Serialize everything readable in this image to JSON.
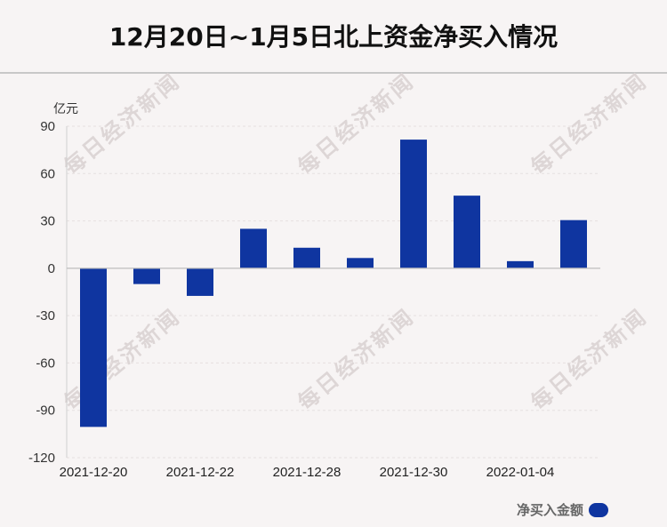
{
  "chart_data": {
    "type": "bar",
    "title": "12月20日~1月5日北上资金净买入情况",
    "ylabel": "亿元",
    "xlabel": "",
    "categories": [
      "2021-12-20",
      "",
      "2021-12-22",
      "",
      "2021-12-28",
      "",
      "2021-12-30",
      "",
      "2022-01-04",
      ""
    ],
    "series": [
      {
        "name": "净买入金额",
        "values": [
          -100.5,
          -10,
          -17.5,
          25,
          13,
          6.5,
          81.5,
          46,
          4.5,
          30.5
        ]
      }
    ],
    "ylim": [
      -120,
      90
    ],
    "yticks": [
      90,
      60,
      30,
      0,
      -30,
      -60,
      -90,
      -120
    ],
    "grid": true,
    "legend_position": "bottom-right",
    "bar_color": "#0f35a0"
  },
  "watermark": "每日经济新闻"
}
